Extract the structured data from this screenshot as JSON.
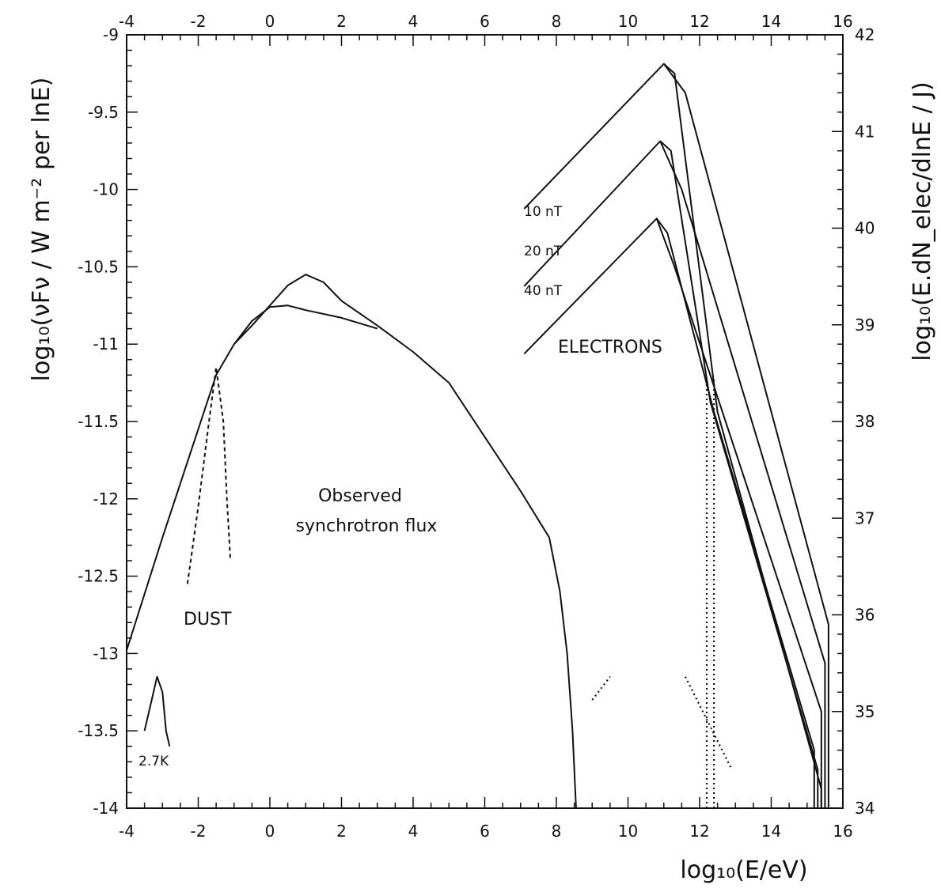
{
  "chart_data": {
    "type": "line",
    "xlabel": "log₁₀(E/eV)",
    "ylabel_left": "log₁₀(νFν / W m⁻² per lnE)",
    "ylabel_right": "log₁₀(E.dN_elec/dlnE / J)",
    "xlim": [
      -4,
      16
    ],
    "ylim_left": [
      -14,
      -9
    ],
    "ylim_right": [
      34,
      42
    ],
    "x_ticks": [
      "-4",
      "-2",
      "0",
      "2",
      "4",
      "6",
      "8",
      "10",
      "12",
      "14",
      "16"
    ],
    "y_left_ticks": [
      "-9",
      "-9.5",
      "-10",
      "-10.5",
      "-11",
      "-11.5",
      "-12",
      "-12.5",
      "-13",
      "-13.5",
      "-14"
    ],
    "y_right_ticks": [
      "42",
      "41",
      "40",
      "39",
      "38",
      "37",
      "36",
      "35",
      "34"
    ],
    "annotations": {
      "synchrotron": [
        "Observed",
        "synchrotron flux"
      ],
      "dust": "DUST",
      "cmb": "2.7K",
      "electrons": "ELECTRONS",
      "field_10": "10 nT",
      "field_20": "20 nT",
      "field_40": "40 nT"
    },
    "series": [
      {
        "style": "solid",
        "points": [
          [
            -4,
            -12.98
          ],
          [
            -3,
            -12.25
          ],
          [
            -2,
            -11.55
          ],
          [
            -1.5,
            -11.2
          ],
          [
            -1,
            -11.0
          ],
          [
            -0.5,
            -10.88
          ],
          [
            0,
            -10.75
          ],
          [
            0.5,
            -10.62
          ],
          [
            1,
            -10.55
          ],
          [
            1.5,
            -10.6
          ],
          [
            2,
            -10.72
          ],
          [
            3,
            -10.88
          ],
          [
            4,
            -11.05
          ],
          [
            5,
            -11.25
          ],
          [
            6,
            -11.6
          ],
          [
            7,
            -11.95
          ],
          [
            7.8,
            -12.25
          ],
          [
            8.1,
            -12.6
          ],
          [
            8.3,
            -13.0
          ],
          [
            8.45,
            -13.5
          ],
          [
            8.55,
            -14.0
          ]
        ]
      },
      {
        "style": "solid",
        "points": [
          [
            -1,
            -11.0
          ],
          [
            -0.5,
            -10.85
          ],
          [
            0,
            -10.76
          ],
          [
            0.5,
            -10.75
          ],
          [
            1,
            -10.78
          ],
          [
            2,
            -10.83
          ],
          [
            3,
            -10.9
          ]
        ]
      },
      {
        "style": "dashed",
        "points": [
          [
            -2.3,
            -12.55
          ],
          [
            -2.0,
            -12.05
          ],
          [
            -1.7,
            -11.5
          ],
          [
            -1.5,
            -11.15
          ],
          [
            -1.3,
            -11.5
          ],
          [
            -1.2,
            -12.0
          ],
          [
            -1.1,
            -12.4
          ]
        ]
      },
      {
        "style": "solid",
        "points": [
          [
            -3.5,
            -13.5
          ],
          [
            -3.3,
            -13.3
          ],
          [
            -3.15,
            -13.15
          ],
          [
            -3.0,
            -13.25
          ],
          [
            -2.9,
            -13.5
          ],
          [
            -2.8,
            -13.6
          ]
        ]
      },
      {
        "style": "dotted",
        "points": [
          [
            9.0,
            -13.3
          ],
          [
            9.5,
            -13.15
          ]
        ]
      },
      {
        "style": "dotted",
        "points": [
          [
            11.6,
            -13.15
          ],
          [
            12.9,
            -13.75
          ]
        ]
      },
      {
        "style": "dotted",
        "points": [
          [
            12.2,
            -14.0
          ],
          [
            12.2,
            -11.23
          ]
        ]
      },
      {
        "style": "dotted",
        "points": [
          [
            12.4,
            -14.0
          ],
          [
            12.4,
            -11.23
          ]
        ]
      },
      {
        "name": "10 nT",
        "axis": "right",
        "style": "solid",
        "points": [
          [
            7.1,
            40.2
          ],
          [
            11,
            41.7
          ],
          [
            11.3,
            41.6
          ],
          [
            12.5,
            38.1
          ],
          [
            15.4,
            34.2
          ],
          [
            15.4,
            34
          ]
        ]
      },
      {
        "name": "10 nT",
        "axis": "right",
        "style": "solid",
        "points": [
          [
            11,
            41.7
          ],
          [
            11.6,
            41.4
          ],
          [
            15.6,
            35.9
          ],
          [
            15.6,
            34
          ]
        ]
      },
      {
        "name": "20 nT",
        "axis": "right",
        "style": "solid",
        "points": [
          [
            7.1,
            39.4
          ],
          [
            10.9,
            40.9
          ],
          [
            11.2,
            40.8
          ],
          [
            12.3,
            38.2
          ],
          [
            15.3,
            34.4
          ],
          [
            15.3,
            34
          ]
        ]
      },
      {
        "name": "20 nT",
        "axis": "right",
        "style": "solid",
        "points": [
          [
            10.9,
            40.9
          ],
          [
            11.5,
            40.4
          ],
          [
            15.5,
            35.5
          ],
          [
            15.5,
            34
          ]
        ]
      },
      {
        "name": "40 nT",
        "axis": "right",
        "style": "solid",
        "points": [
          [
            7.1,
            38.7
          ],
          [
            10.8,
            40.1
          ],
          [
            11.1,
            39.95
          ],
          [
            12.4,
            38.1
          ],
          [
            15.2,
            34.6
          ],
          [
            15.2,
            34
          ]
        ]
      },
      {
        "name": "40 nT",
        "axis": "right",
        "style": "solid",
        "points": [
          [
            10.8,
            40.1
          ],
          [
            11.3,
            39.6
          ],
          [
            15.4,
            35.0
          ],
          [
            15.4,
            34
          ]
        ]
      }
    ]
  }
}
